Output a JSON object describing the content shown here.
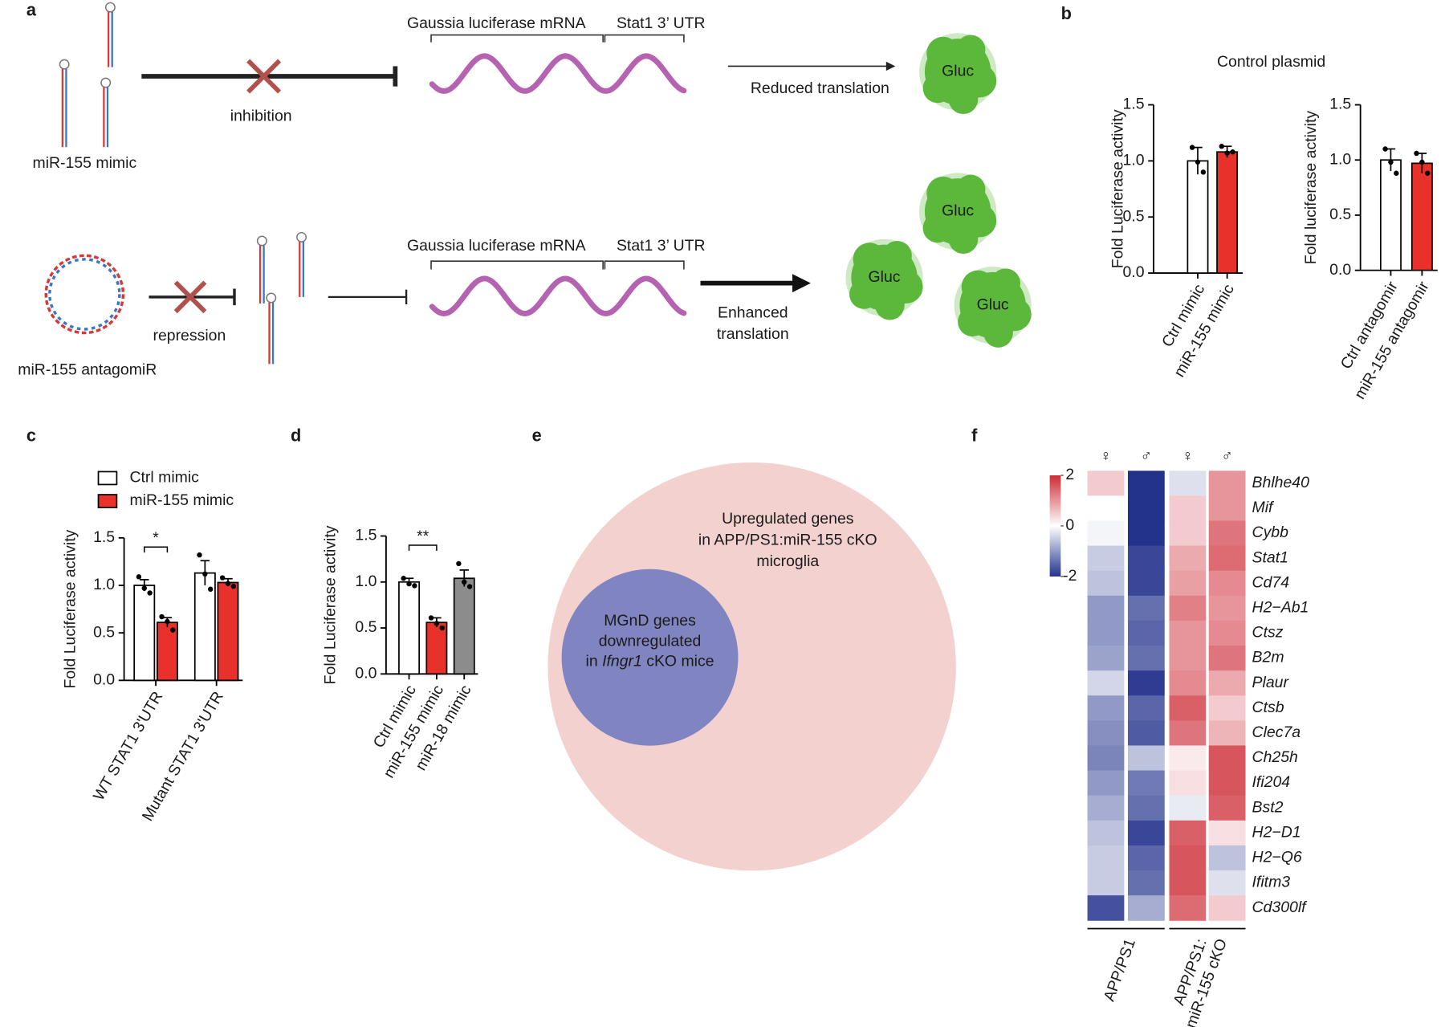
{
  "panel_labels": [
    "a",
    "b",
    "c",
    "d",
    "e",
    "f"
  ],
  "diagram": {
    "rows": [
      {
        "rna": "miR-155 mimic",
        "action": "inhibition",
        "mrna": "Gaussia luciferase mRNA",
        "utr": "Stat1 3’ UTR",
        "outcome": [
          "Reduced translation"
        ],
        "protein": [
          "Gluc"
        ]
      },
      {
        "rna": "miR-155 antagomiR",
        "action": "repression",
        "mrna": "Gaussia luciferase mRNA",
        "utr": "Stat1 3’ UTR",
        "outcome": [
          "Enhanced",
          "translation"
        ],
        "protein": [
          "Gluc",
          "Gluc",
          "Gluc"
        ]
      }
    ]
  },
  "venn": {
    "outer": [
      "Upregulated genes",
      "in APP/PS1:miR-155 cKO",
      "microglia"
    ],
    "inner": [
      "MGnD genes",
      "downregulated"
    ],
    "inner_last": [
      "in ",
      "Ifngr1",
      " cKO mice"
    ]
  },
  "chart_data": [
    {
      "type": "bar",
      "title": "Control plasmid",
      "ylabel": "Fold Luciferase activity",
      "categories": [
        "Ctrl mimic",
        "miR-155 mimic"
      ],
      "values": [
        1.0,
        1.08
      ],
      "errors": [
        0.12,
        0.05
      ],
      "points": [
        [
          1.12,
          0.99,
          0.9
        ],
        [
          1.13,
          1.07,
          1.08
        ]
      ],
      "colors": [
        "#ffffff",
        "#e8312a"
      ],
      "ylim": [
        0,
        1.5
      ],
      "yticks": [
        {
          "value": 0,
          "label": "0.0"
        },
        0.5,
        {
          "value": 1,
          "label": "1.0"
        },
        1.5
      ]
    },
    {
      "type": "bar",
      "ylabel": "Fold luciferase activity",
      "categories": [
        "Ctrl antagomir",
        "miR-155 antagomir"
      ],
      "values": [
        1.0,
        0.97
      ],
      "errors": [
        0.1,
        0.09
      ],
      "points": [
        [
          1.1,
          0.98,
          0.88
        ],
        [
          1.06,
          0.98,
          0.88
        ]
      ],
      "colors": [
        "#ffffff",
        "#e8312a"
      ],
      "ylim": [
        0,
        1.5
      ],
      "yticks": [
        {
          "value": 0,
          "label": "0.0"
        },
        0.5,
        {
          "value": 1,
          "label": "1.0"
        },
        1.5
      ]
    },
    {
      "type": "grouped_bar",
      "ylabel": "Fold Luciferase activity",
      "categories": [
        "WT STAT1 3'UTR",
        "Mutant STAT1 3'UTR"
      ],
      "series": [
        {
          "name": "Ctrl mimic",
          "color": "#ffffff",
          "values": [
            1.0,
            1.13
          ],
          "errors": [
            0.06,
            0.13
          ],
          "points": [
            [
              1.09,
              0.97,
              0.92
            ],
            [
              1.32,
              1.12,
              0.96
            ]
          ]
        },
        {
          "name": "miR-155 mimic",
          "color": "#e8312a",
          "values": [
            0.61,
            1.03
          ],
          "errors": [
            0.05,
            0.04
          ],
          "points": [
            [
              0.67,
              0.62,
              0.53
            ],
            [
              1.08,
              1.02,
              0.99
            ]
          ]
        }
      ],
      "significance": "*",
      "legend": "top-left",
      "ylim": [
        0,
        1.5
      ],
      "yticks": [
        {
          "value": 0,
          "label": "0.0"
        },
        0.5,
        {
          "value": 1,
          "label": "1.0"
        },
        1.5
      ]
    },
    {
      "type": "bar",
      "ylabel": "Fold Luciferase activity",
      "categories": [
        "Ctrl mimic",
        "miR-155 mimic",
        "miR-18 mimic"
      ],
      "values": [
        1.0,
        0.56,
        1.04
      ],
      "errors": [
        0.04,
        0.05,
        0.09
      ],
      "points": [
        [
          1.04,
          0.98,
          0.96
        ],
        [
          0.61,
          0.55,
          0.5
        ],
        [
          1.2,
          1.0,
          0.95
        ]
      ],
      "colors": [
        "#ffffff",
        "#e8312a",
        "#8c8c8c"
      ],
      "significance": "**",
      "ylim": [
        0,
        1.5
      ],
      "yticks": [
        {
          "value": 0,
          "label": "0.0"
        },
        0.5,
        {
          "value": 1,
          "label": "1.0"
        },
        1.5
      ]
    },
    {
      "type": "heatmap",
      "columns": [
        "♀",
        "♂",
        "♀",
        "♂"
      ],
      "groups": [
        [
          "APP/PS1"
        ],
        [
          "APP/PS1:",
          "miR-155 cKO"
        ]
      ],
      "rows": [
        "Bhlhe40",
        "Mif",
        "Cybb",
        "Stat1",
        "Cd74",
        "H2−Ab1",
        "Ctsz",
        "B2m",
        "Plaur",
        "Ctsb",
        "Clec7a",
        "Ch25h",
        "Ifi204",
        "Bst2",
        "H2−D1",
        "H2−Q6",
        "Ifitm3",
        "Cd300lf"
      ],
      "values": [
        [
          0.5,
          -2,
          -0.3,
          1
        ],
        [
          0,
          -2,
          0.5,
          1
        ],
        [
          -0.1,
          -2,
          0.5,
          1.3
        ],
        [
          -0.5,
          -1.8,
          0.8,
          1.4
        ],
        [
          -0.6,
          -1.8,
          0.9,
          1.1
        ],
        [
          -1,
          -1.4,
          1.2,
          1
        ],
        [
          -1,
          -1.5,
          1,
          1.1
        ],
        [
          -0.9,
          -1.4,
          1,
          1.3
        ],
        [
          -0.4,
          -1.9,
          1.1,
          0.8
        ],
        [
          -1,
          -1.5,
          1.5,
          0.5
        ],
        [
          -1.1,
          -1.6,
          1.3,
          0.7
        ],
        [
          -1.2,
          -0.6,
          0.2,
          1.6
        ],
        [
          -1,
          -1.3,
          0.3,
          1.6
        ],
        [
          -0.8,
          -1.4,
          -0.2,
          1.5
        ],
        [
          -0.6,
          -1.8,
          1.5,
          0.3
        ],
        [
          -0.5,
          -1.5,
          1.6,
          -0.6
        ],
        [
          -0.5,
          -1.4,
          1.6,
          -0.3
        ],
        [
          -1.7,
          -0.8,
          1.4,
          0.5
        ]
      ],
      "clim": [
        -2,
        2
      ],
      "colorbar_ticks": [
        2,
        0,
        -2
      ],
      "colors": [
        "#23338c",
        "#ffffff",
        "#cd2b35"
      ]
    }
  ]
}
